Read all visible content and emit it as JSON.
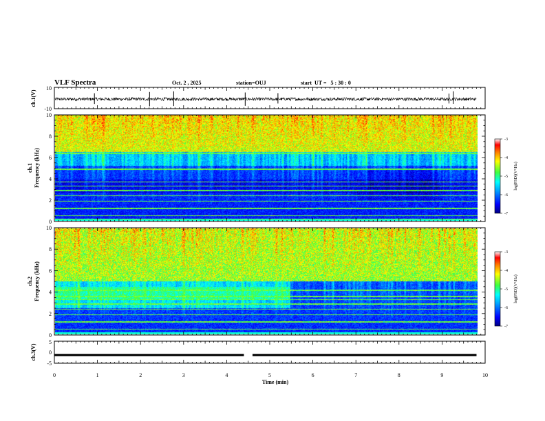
{
  "header": {
    "title": "VLF Spectra",
    "date": "Oct. 2 , 2025",
    "station": "station=OUJ",
    "start_ut": "start  UT =   5 : 30 : 0"
  },
  "colors": {
    "axes": "#000000",
    "background": "#ffffff",
    "colormap": [
      "#000080",
      "#0000ff",
      "#00a0ff",
      "#00ffff",
      "#40ff40",
      "#ffff00",
      "#ff8000",
      "#ff0000",
      "#ffffff"
    ]
  },
  "chart_data": [
    {
      "type": "line",
      "panel": "ch1-waveform",
      "ylabel": "ch.1(V)",
      "ylim": [
        -10,
        10
      ],
      "yticks": [
        "10",
        "-10"
      ],
      "xlim": [
        0,
        10
      ],
      "description_values": {
        "baseline_V": -1,
        "noise_amplitude_V": 1.5,
        "spike_times_min": [
          0.93,
          2.21,
          2.77,
          4.43,
          5.19,
          9.16,
          9.26
        ]
      }
    },
    {
      "type": "heatmap",
      "panel": "ch1-spectrogram",
      "ylabel": "ch.1\nFrequency (kHz)",
      "ylim": [
        0,
        10
      ],
      "yticks": [
        "0",
        "2",
        "4",
        "6",
        "8",
        "10"
      ],
      "xlim": [
        0,
        9.8
      ],
      "colorbar": {
        "label": "log(PSD)(V²/Hz)",
        "range": [
          -7,
          -3
        ],
        "ticks": [
          "-3",
          "-4",
          "-5",
          "-6",
          "-7"
        ]
      },
      "features": {
        "lines_kHz": [
          0.2,
          0.5,
          1.2,
          1.9,
          2.4,
          2.9,
          3.3,
          3.7,
          4.9,
          6.4
        ],
        "dark_band_kHz": [
          2.6,
          3.9
        ],
        "hiss_above_kHz": 6.5
      }
    },
    {
      "type": "heatmap",
      "panel": "ch2-spectrogram",
      "ylabel": "ch.2\nFrequency (kHz)",
      "ylim": [
        0,
        10
      ],
      "yticks": [
        "0",
        "2",
        "4",
        "6",
        "8",
        "10"
      ],
      "xlim": [
        0,
        9.8
      ],
      "colorbar": {
        "label": "log(PSD)(V²/Hz)",
        "range": [
          -7,
          -3
        ],
        "ticks": [
          "-3",
          "-4",
          "-5",
          "-6",
          "-7"
        ]
      },
      "features": {
        "lines_kHz": [
          0.5,
          1.2,
          1.9,
          2.4,
          2.9,
          3.3,
          3.6,
          4.2,
          6.7
        ],
        "bright_band_kHz": [
          3.3,
          4.5
        ],
        "bright_band_end_min": 5.45,
        "hiss_above_kHz": 5.0
      }
    },
    {
      "type": "line",
      "panel": "ch3-waveform",
      "ylabel": "ch.3(V)",
      "ylim": [
        -5,
        5
      ],
      "yticks": [
        "5",
        "0",
        "-5"
      ],
      "xlim": [
        0,
        10
      ],
      "xlabel": "Time (min)",
      "xticks": [
        "0",
        "1",
        "2",
        "3",
        "4",
        "5",
        "6",
        "7",
        "8",
        "9",
        "10"
      ],
      "description_values": {
        "level_V": -1.3,
        "gap_min": [
          4.4,
          4.6
        ]
      }
    }
  ]
}
